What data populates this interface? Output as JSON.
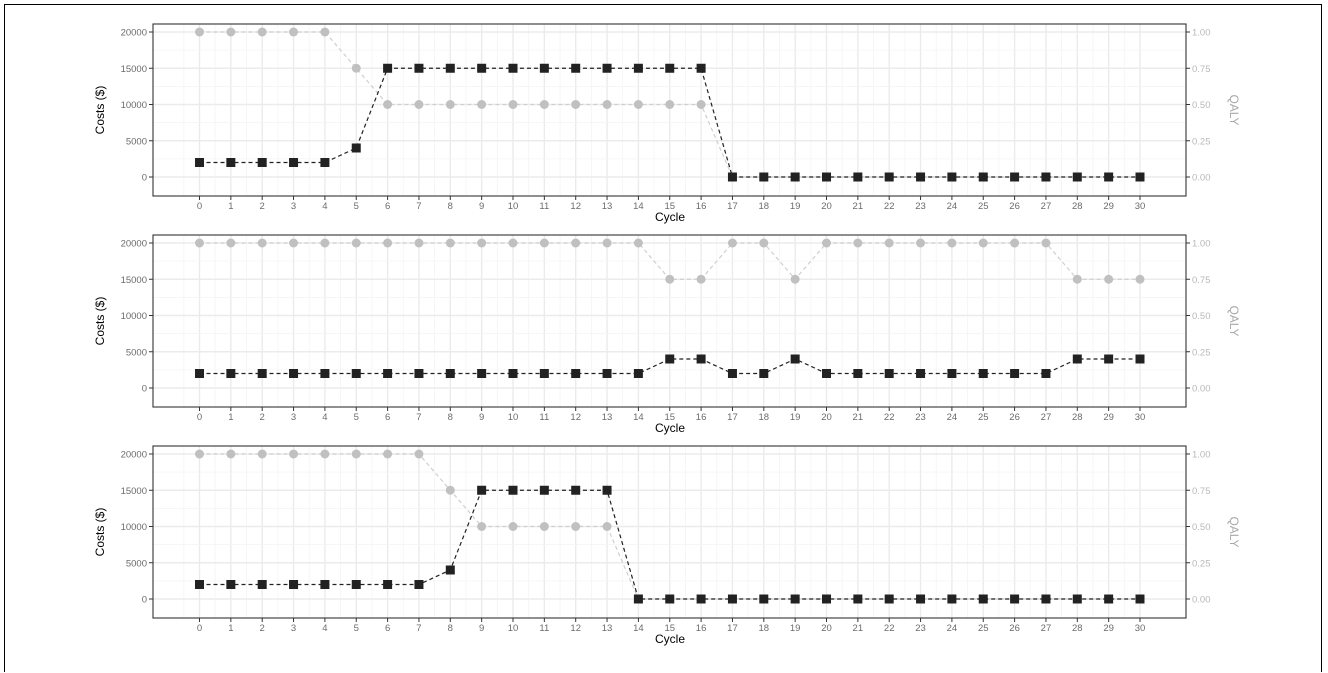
{
  "chart_data": [
    {
      "type": "line",
      "xlabel": "Cycle",
      "ylabel": "Costs ($)",
      "y2label": "QALY",
      "x": [
        0,
        1,
        2,
        3,
        4,
        5,
        6,
        7,
        8,
        9,
        10,
        11,
        12,
        13,
        14,
        15,
        16,
        17,
        18,
        19,
        20,
        21,
        22,
        23,
        24,
        25,
        26,
        27,
        28,
        29,
        30
      ],
      "ylim": [
        0,
        20000
      ],
      "yticks": [
        0,
        5000,
        10000,
        15000,
        20000
      ],
      "y2lim": [
        0,
        1
      ],
      "y2ticks": [
        "0.00",
        "0.25",
        "0.50",
        "0.75",
        "1.00"
      ],
      "grid": true,
      "series": [
        {
          "axis": "costs",
          "marker": "square",
          "color": "#222222",
          "values": [
            2000,
            2000,
            2000,
            2000,
            2000,
            4000,
            15000,
            15000,
            15000,
            15000,
            15000,
            15000,
            15000,
            15000,
            15000,
            15000,
            15000,
            0,
            0,
            0,
            0,
            0,
            0,
            0,
            0,
            0,
            0,
            0,
            0,
            0,
            0
          ]
        },
        {
          "axis": "qaly",
          "marker": "circle",
          "color": "#c0c0c0",
          "values": [
            1,
            1,
            1,
            1,
            1,
            0.75,
            0.5,
            0.5,
            0.5,
            0.5,
            0.5,
            0.5,
            0.5,
            0.5,
            0.5,
            0.5,
            0.5,
            0,
            0,
            0,
            0,
            0,
            0,
            0,
            0,
            0,
            0,
            0,
            0,
            0,
            0
          ]
        }
      ]
    },
    {
      "type": "line",
      "xlabel": "Cycle",
      "ylabel": "Costs ($)",
      "y2label": "QALY",
      "x": [
        0,
        1,
        2,
        3,
        4,
        5,
        6,
        7,
        8,
        9,
        10,
        11,
        12,
        13,
        14,
        15,
        16,
        17,
        18,
        19,
        20,
        21,
        22,
        23,
        24,
        25,
        26,
        27,
        28,
        29,
        30
      ],
      "ylim": [
        0,
        20000
      ],
      "yticks": [
        0,
        5000,
        10000,
        15000,
        20000
      ],
      "y2lim": [
        0,
        1
      ],
      "y2ticks": [
        "0.00",
        "0.25",
        "0.50",
        "0.75",
        "1.00"
      ],
      "grid": true,
      "series": [
        {
          "axis": "costs",
          "marker": "square",
          "color": "#222222",
          "values": [
            2000,
            2000,
            2000,
            2000,
            2000,
            2000,
            2000,
            2000,
            2000,
            2000,
            2000,
            2000,
            2000,
            2000,
            2000,
            4000,
            4000,
            2000,
            2000,
            4000,
            2000,
            2000,
            2000,
            2000,
            2000,
            2000,
            2000,
            2000,
            4000,
            4000,
            4000
          ]
        },
        {
          "axis": "qaly",
          "marker": "circle",
          "color": "#c0c0c0",
          "values": [
            1,
            1,
            1,
            1,
            1,
            1,
            1,
            1,
            1,
            1,
            1,
            1,
            1,
            1,
            1,
            0.75,
            0.75,
            1,
            1,
            0.75,
            1,
            1,
            1,
            1,
            1,
            1,
            1,
            1,
            0.75,
            0.75,
            0.75
          ]
        }
      ]
    },
    {
      "type": "line",
      "xlabel": "Cycle",
      "ylabel": "Costs ($)",
      "y2label": "QALY",
      "x": [
        0,
        1,
        2,
        3,
        4,
        5,
        6,
        7,
        8,
        9,
        10,
        11,
        12,
        13,
        14,
        15,
        16,
        17,
        18,
        19,
        20,
        21,
        22,
        23,
        24,
        25,
        26,
        27,
        28,
        29,
        30
      ],
      "ylim": [
        0,
        20000
      ],
      "yticks": [
        0,
        5000,
        10000,
        15000,
        20000
      ],
      "y2lim": [
        0,
        1
      ],
      "y2ticks": [
        "0.00",
        "0.25",
        "0.50",
        "0.75",
        "1.00"
      ],
      "grid": true,
      "series": [
        {
          "axis": "costs",
          "marker": "square",
          "color": "#222222",
          "values": [
            2000,
            2000,
            2000,
            2000,
            2000,
            2000,
            2000,
            2000,
            4000,
            15000,
            15000,
            15000,
            15000,
            15000,
            0,
            0,
            0,
            0,
            0,
            0,
            0,
            0,
            0,
            0,
            0,
            0,
            0,
            0,
            0,
            0,
            0
          ]
        },
        {
          "axis": "qaly",
          "marker": "circle",
          "color": "#c0c0c0",
          "values": [
            1,
            1,
            1,
            1,
            1,
            1,
            1,
            1,
            0.75,
            0.5,
            0.5,
            0.5,
            0.5,
            0.5,
            0,
            0,
            0,
            0,
            0,
            0,
            0,
            0,
            0,
            0,
            0,
            0,
            0,
            0,
            0,
            0,
            0
          ]
        }
      ]
    }
  ]
}
